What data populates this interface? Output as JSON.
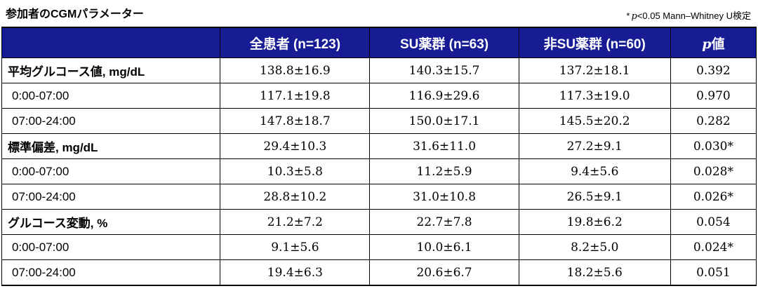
{
  "colors": {
    "header_bg": "#181C94",
    "border": "#000000",
    "text": "#000000",
    "header_text": "#ffffff"
  },
  "title": "参加者のCGMパラメーター",
  "note": {
    "star": "*",
    "p": "p",
    "rest": "<0.05 Mann–Whitney U検定"
  },
  "table": {
    "header": {
      "col1": "",
      "col2": "全患者 (n=123)",
      "col3": "SU薬群 (n=63)",
      "col4": "非SU薬群 (n=60)",
      "col5_p": "p",
      "col5_suffix": "値"
    },
    "rows": [
      {
        "label": "平均グルコース値, mg/dL",
        "style": "category",
        "values": [
          "138.8±16.9",
          "140.3±15.7",
          "137.2±18.1",
          "0.392"
        ]
      },
      {
        "label": "0:00-07:00",
        "style": "sub",
        "values": [
          "117.1±19.8",
          "116.9±29.6",
          "117.3±19.0",
          "0.970"
        ]
      },
      {
        "label": "07:00-24:00",
        "style": "sub",
        "values": [
          "147.8±18.7",
          "150.0±17.1",
          "145.5±20.2",
          "0.282"
        ]
      },
      {
        "label": "標準偏差, mg/dL",
        "style": "category",
        "values": [
          "29.4±10.3",
          "31.6±11.0",
          "27.2±9.1",
          "0.030*"
        ]
      },
      {
        "label": "0:00-07:00",
        "style": "sub",
        "values": [
          "10.3±5.8",
          "11.2±5.9",
          "9.4±5.6",
          "0.028*"
        ]
      },
      {
        "label": "07:00-24:00",
        "style": "sub",
        "values": [
          "28.8±10.2",
          "31.0±10.8",
          "26.5±9.1",
          "0.026*"
        ]
      },
      {
        "label": "グルコース変動, %",
        "style": "category",
        "values": [
          "21.2±7.2",
          "22.7±7.8",
          "19.8±6.2",
          "0.054"
        ]
      },
      {
        "label": "0:00-07:00",
        "style": "sub",
        "values": [
          "9.1±5.6",
          "10.0±6.1",
          "8.2±5.0",
          "0.024*"
        ]
      },
      {
        "label": "07:00-24:00",
        "style": "sub",
        "values": [
          "19.4±6.3",
          "20.6±6.7",
          "18.2±5.6",
          "0.051"
        ]
      }
    ]
  }
}
